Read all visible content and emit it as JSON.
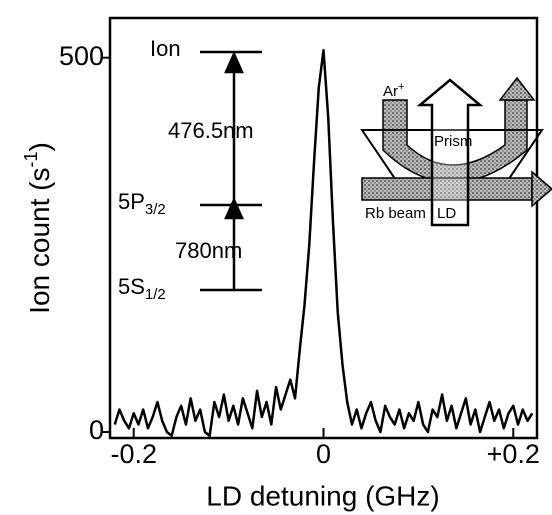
{
  "chart_data": {
    "type": "line",
    "xlabel": "LD detuning (GHz)",
    "ylabel": {
      "text": "Ion count (s",
      "sup": "-1",
      "tail": ")"
    },
    "color": "#000000",
    "xlim": [
      -0.225,
      0.225
    ],
    "ylim": [
      -8,
      553
    ],
    "xticks": [
      -0.2,
      0,
      {
        "value": 0.2,
        "label": "+0.2"
      }
    ],
    "yticks": [
      0,
      500
    ],
    "x": [
      -0.22,
      -0.215,
      -0.21,
      -0.205,
      -0.2,
      -0.195,
      -0.19,
      -0.185,
      -0.18,
      -0.175,
      -0.17,
      -0.165,
      -0.16,
      -0.155,
      -0.15,
      -0.145,
      -0.14,
      -0.135,
      -0.13,
      -0.125,
      -0.12,
      -0.115,
      -0.11,
      -0.105,
      -0.1,
      -0.095,
      -0.09,
      -0.085,
      -0.08,
      -0.075,
      -0.07,
      -0.065,
      -0.06,
      -0.055,
      -0.05,
      -0.045,
      -0.04,
      -0.035,
      -0.03,
      -0.025,
      -0.02,
      -0.015,
      -0.01,
      -0.005,
      0,
      0.005,
      0.01,
      0.015,
      0.02,
      0.025,
      0.03,
      0.035,
      0.04,
      0.045,
      0.05,
      0.055,
      0.06,
      0.065,
      0.07,
      0.075,
      0.08,
      0.085,
      0.09,
      0.095,
      0.1,
      0.105,
      0.11,
      0.115,
      0.12,
      0.125,
      0.13,
      0.135,
      0.14,
      0.145,
      0.15,
      0.155,
      0.16,
      0.165,
      0.17,
      0.175,
      0.18,
      0.185,
      0.19,
      0.195,
      0.2,
      0.205,
      0.21,
      0.215,
      0.22
    ],
    "values": [
      10,
      30,
      15,
      5,
      25,
      10,
      30,
      5,
      20,
      40,
      15,
      0,
      -5,
      20,
      35,
      10,
      45,
      15,
      30,
      0,
      -5,
      40,
      20,
      50,
      15,
      35,
      10,
      45,
      25,
      5,
      55,
      20,
      40,
      10,
      60,
      30,
      50,
      70,
      45,
      110,
      170,
      250,
      360,
      460,
      510,
      420,
      280,
      160,
      90,
      40,
      10,
      30,
      5,
      25,
      40,
      15,
      0,
      35,
      20,
      10,
      30,
      5,
      25,
      15,
      40,
      10,
      0,
      30,
      20,
      50,
      15,
      35,
      5,
      25,
      45,
      10,
      30,
      0,
      20,
      40,
      15,
      30,
      5,
      25,
      35,
      10,
      30,
      15,
      25
    ],
    "levels": [
      {
        "text": "Ion"
      },
      {
        "text": "5P",
        "sub": "3/2"
      },
      {
        "text": "5S",
        "sub": "1/2"
      }
    ],
    "transitions": [
      "476.5nm",
      "780nm"
    ],
    "inset_labels": {
      "ar": "Ar",
      "ar_sup": "+",
      "prism": "Prism",
      "rb": "Rb beam",
      "ld": "LD"
    }
  }
}
